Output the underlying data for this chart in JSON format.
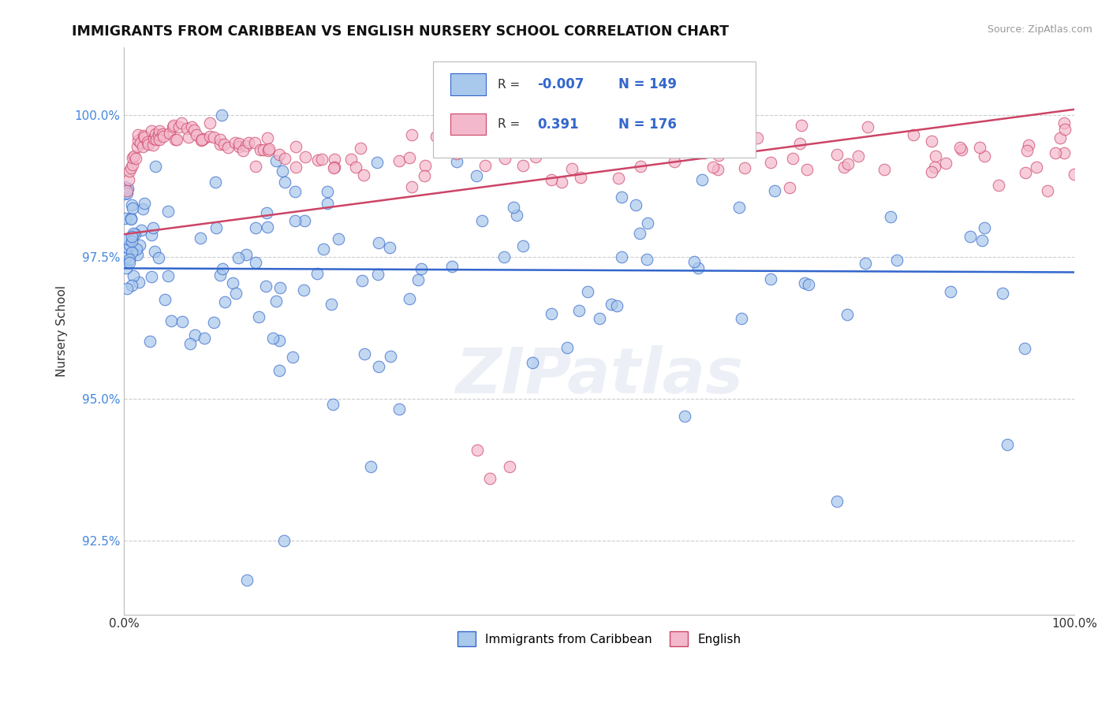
{
  "title": "IMMIGRANTS FROM CARIBBEAN VS ENGLISH NURSERY SCHOOL CORRELATION CHART",
  "source": "Source: ZipAtlas.com",
  "ylabel": "Nursery School",
  "series1_label": "Immigrants from Caribbean",
  "series2_label": "English",
  "R1": -0.007,
  "N1": 149,
  "R2": 0.391,
  "N2": 176,
  "color1": "#a8c8ec",
  "color2": "#f4b8cc",
  "trendline1_color": "#3366cc",
  "trendline2_color": "#cc4466",
  "xlim": [
    0.0,
    100.0
  ],
  "ylim": [
    91.2,
    101.2
  ],
  "yticks": [
    92.5,
    95.0,
    97.5,
    100.0
  ],
  "ytick_labels": [
    "92.5%",
    "95.0%",
    "97.5%",
    "100.0%"
  ],
  "xtick_labels": [
    "0.0%",
    "100.0%"
  ],
  "watermark": "ZIPatlas",
  "title_fontsize": 12.5,
  "axis_label_fontsize": 11,
  "tick_fontsize": 11,
  "blue_trendline_y": [
    97.3,
    97.23
  ],
  "pink_trendline_y": [
    97.9,
    100.1
  ]
}
